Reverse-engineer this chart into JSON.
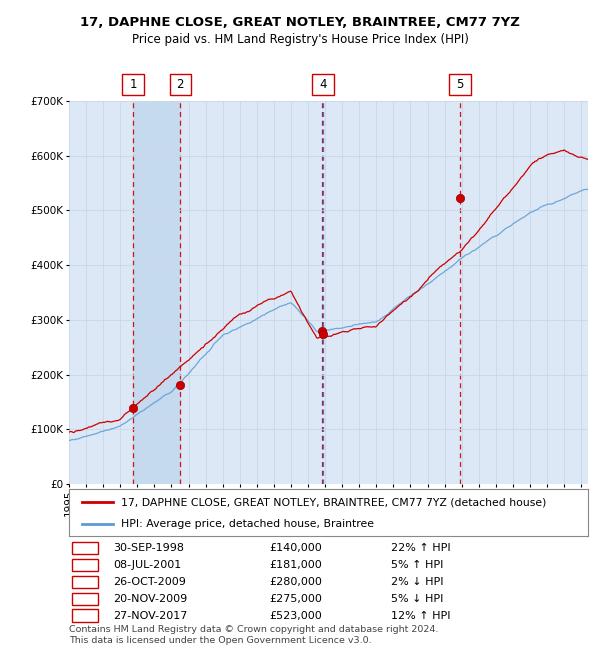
{
  "title": "17, DAPHNE CLOSE, GREAT NOTLEY, BRAINTREE, CM77 7YZ",
  "subtitle": "Price paid vs. HM Land Registry's House Price Index (HPI)",
  "ylim": [
    0,
    700000
  ],
  "yticks": [
    0,
    100000,
    200000,
    300000,
    400000,
    500000,
    600000,
    700000
  ],
  "ytick_labels": [
    "£0",
    "£100K",
    "£200K",
    "£300K",
    "£400K",
    "£500K",
    "£600K",
    "£700K"
  ],
  "xlim_start": 1995.0,
  "xlim_end": 2025.4,
  "hpi_color": "#5b9bd5",
  "price_color": "#cc0000",
  "sale_dot_color": "#cc0000",
  "sale_marker_size": 6,
  "bg_color": "#ffffff",
  "plot_bg_color": "#dce8f5",
  "grid_color": "#c8d8e8",
  "shaded_color": "#c5d9ef",
  "sale_events": [
    {
      "label": "1",
      "date_year": 1998.75,
      "price": 140000,
      "show_box": true,
      "vline_color": "#cc0000",
      "date_str": "30-SEP-1998",
      "price_str": "£140,000",
      "hpi_str": "22% ↑ HPI"
    },
    {
      "label": "2",
      "date_year": 2001.52,
      "price": 181000,
      "show_box": true,
      "vline_color": "#cc0000",
      "date_str": "08-JUL-2001",
      "price_str": "£181,000",
      "hpi_str": "5% ↑ HPI"
    },
    {
      "label": "3",
      "date_year": 2009.81,
      "price": 280000,
      "show_box": false,
      "vline_color": "#cc0000",
      "date_str": "26-OCT-2009",
      "price_str": "£280,000",
      "hpi_str": "2% ↓ HPI"
    },
    {
      "label": "4",
      "date_year": 2009.89,
      "price": 275000,
      "show_box": true,
      "vline_color": "#3366cc",
      "date_str": "20-NOV-2009",
      "price_str": "£275,000",
      "hpi_str": "5% ↓ HPI"
    },
    {
      "label": "5",
      "date_year": 2017.9,
      "price": 523000,
      "show_box": true,
      "vline_color": "#cc0000",
      "date_str": "27-NOV-2017",
      "price_str": "£523,000",
      "hpi_str": "12% ↑ HPI"
    }
  ],
  "legend_line1": "17, DAPHNE CLOSE, GREAT NOTLEY, BRAINTREE, CM77 7YZ (detached house)",
  "legend_line2": "HPI: Average price, detached house, Braintree",
  "footer": "Contains HM Land Registry data © Crown copyright and database right 2024.\nThis data is licensed under the Open Government Licence v3.0.",
  "title_fontsize": 9.5,
  "subtitle_fontsize": 8.5,
  "tick_fontsize": 7.5,
  "legend_fontsize": 7.8,
  "table_fontsize": 8.0,
  "footer_fontsize": 6.8
}
